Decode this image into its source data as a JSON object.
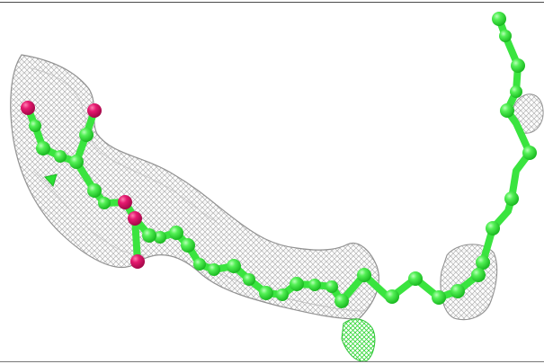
{
  "figure": {
    "colors": {
      "background": "#ffffff",
      "mesh": "#a9a9a9",
      "mesh_dark": "#7f7f7f",
      "carbon": "#39e83f",
      "oxygen": "#e0156b",
      "green_mesh": "#34d63a",
      "rule": "#4a4a4a"
    }
  }
}
